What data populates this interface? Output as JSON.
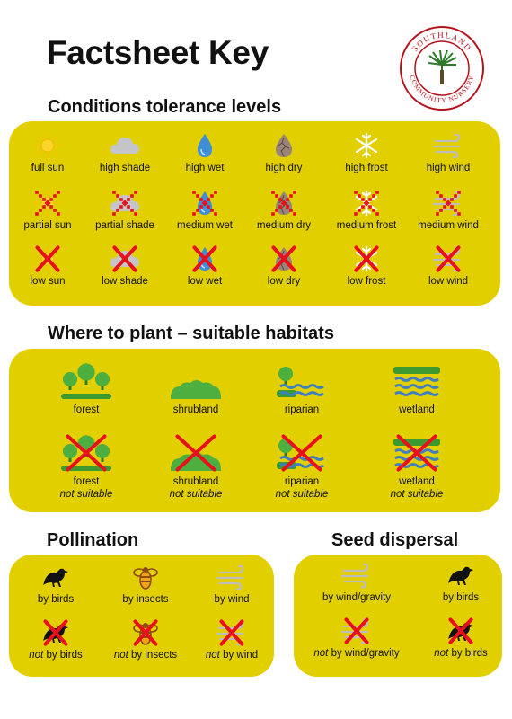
{
  "title": "Factsheet Key",
  "logo": {
    "text_top": "SOUTHLAND",
    "text_bottom": "COMMUNITY NURSERY"
  },
  "sections": {
    "conditions": "Conditions tolerance levels",
    "habitats": "Where to plant – suitable habitats",
    "pollination": "Pollination",
    "seed": "Seed dispersal"
  },
  "conditions": {
    "high": [
      "full sun",
      "high shade",
      "high wet",
      "high dry",
      "high frost",
      "high wind"
    ],
    "partial": [
      "partial sun",
      "partial shade",
      "medium wet",
      "medium dry",
      "medium frost",
      "medium wind"
    ],
    "low": [
      "low sun",
      "low shade",
      "low wet",
      "low dry",
      "low frost",
      "low wind"
    ],
    "icons": [
      "sun-icon",
      "cloud-icon",
      "water-drop-icon",
      "cracked-earth-icon",
      "snowflake-icon",
      "wind-icon"
    ]
  },
  "habitats": {
    "names": [
      "forest",
      "shrubland",
      "riparian",
      "wetland"
    ],
    "not_suitable": "not suitable"
  },
  "pollination": {
    "labels": [
      "by birds",
      "by insects",
      "by wind"
    ],
    "not_word": "not",
    "not_labels": [
      "by birds",
      "by insects",
      "by wind"
    ]
  },
  "seed": {
    "labels": [
      "by wind/gravity",
      "by birds"
    ],
    "not_word": "not",
    "not_labels": [
      "by wind/gravity",
      "by birds"
    ]
  },
  "colors": {
    "panel": "#e2cf00",
    "cross": "#e8101c",
    "logo_ring": "#b5121b",
    "sun": "#f5c400",
    "plants": "#3d9a2e",
    "water": "#3f7fc1"
  }
}
